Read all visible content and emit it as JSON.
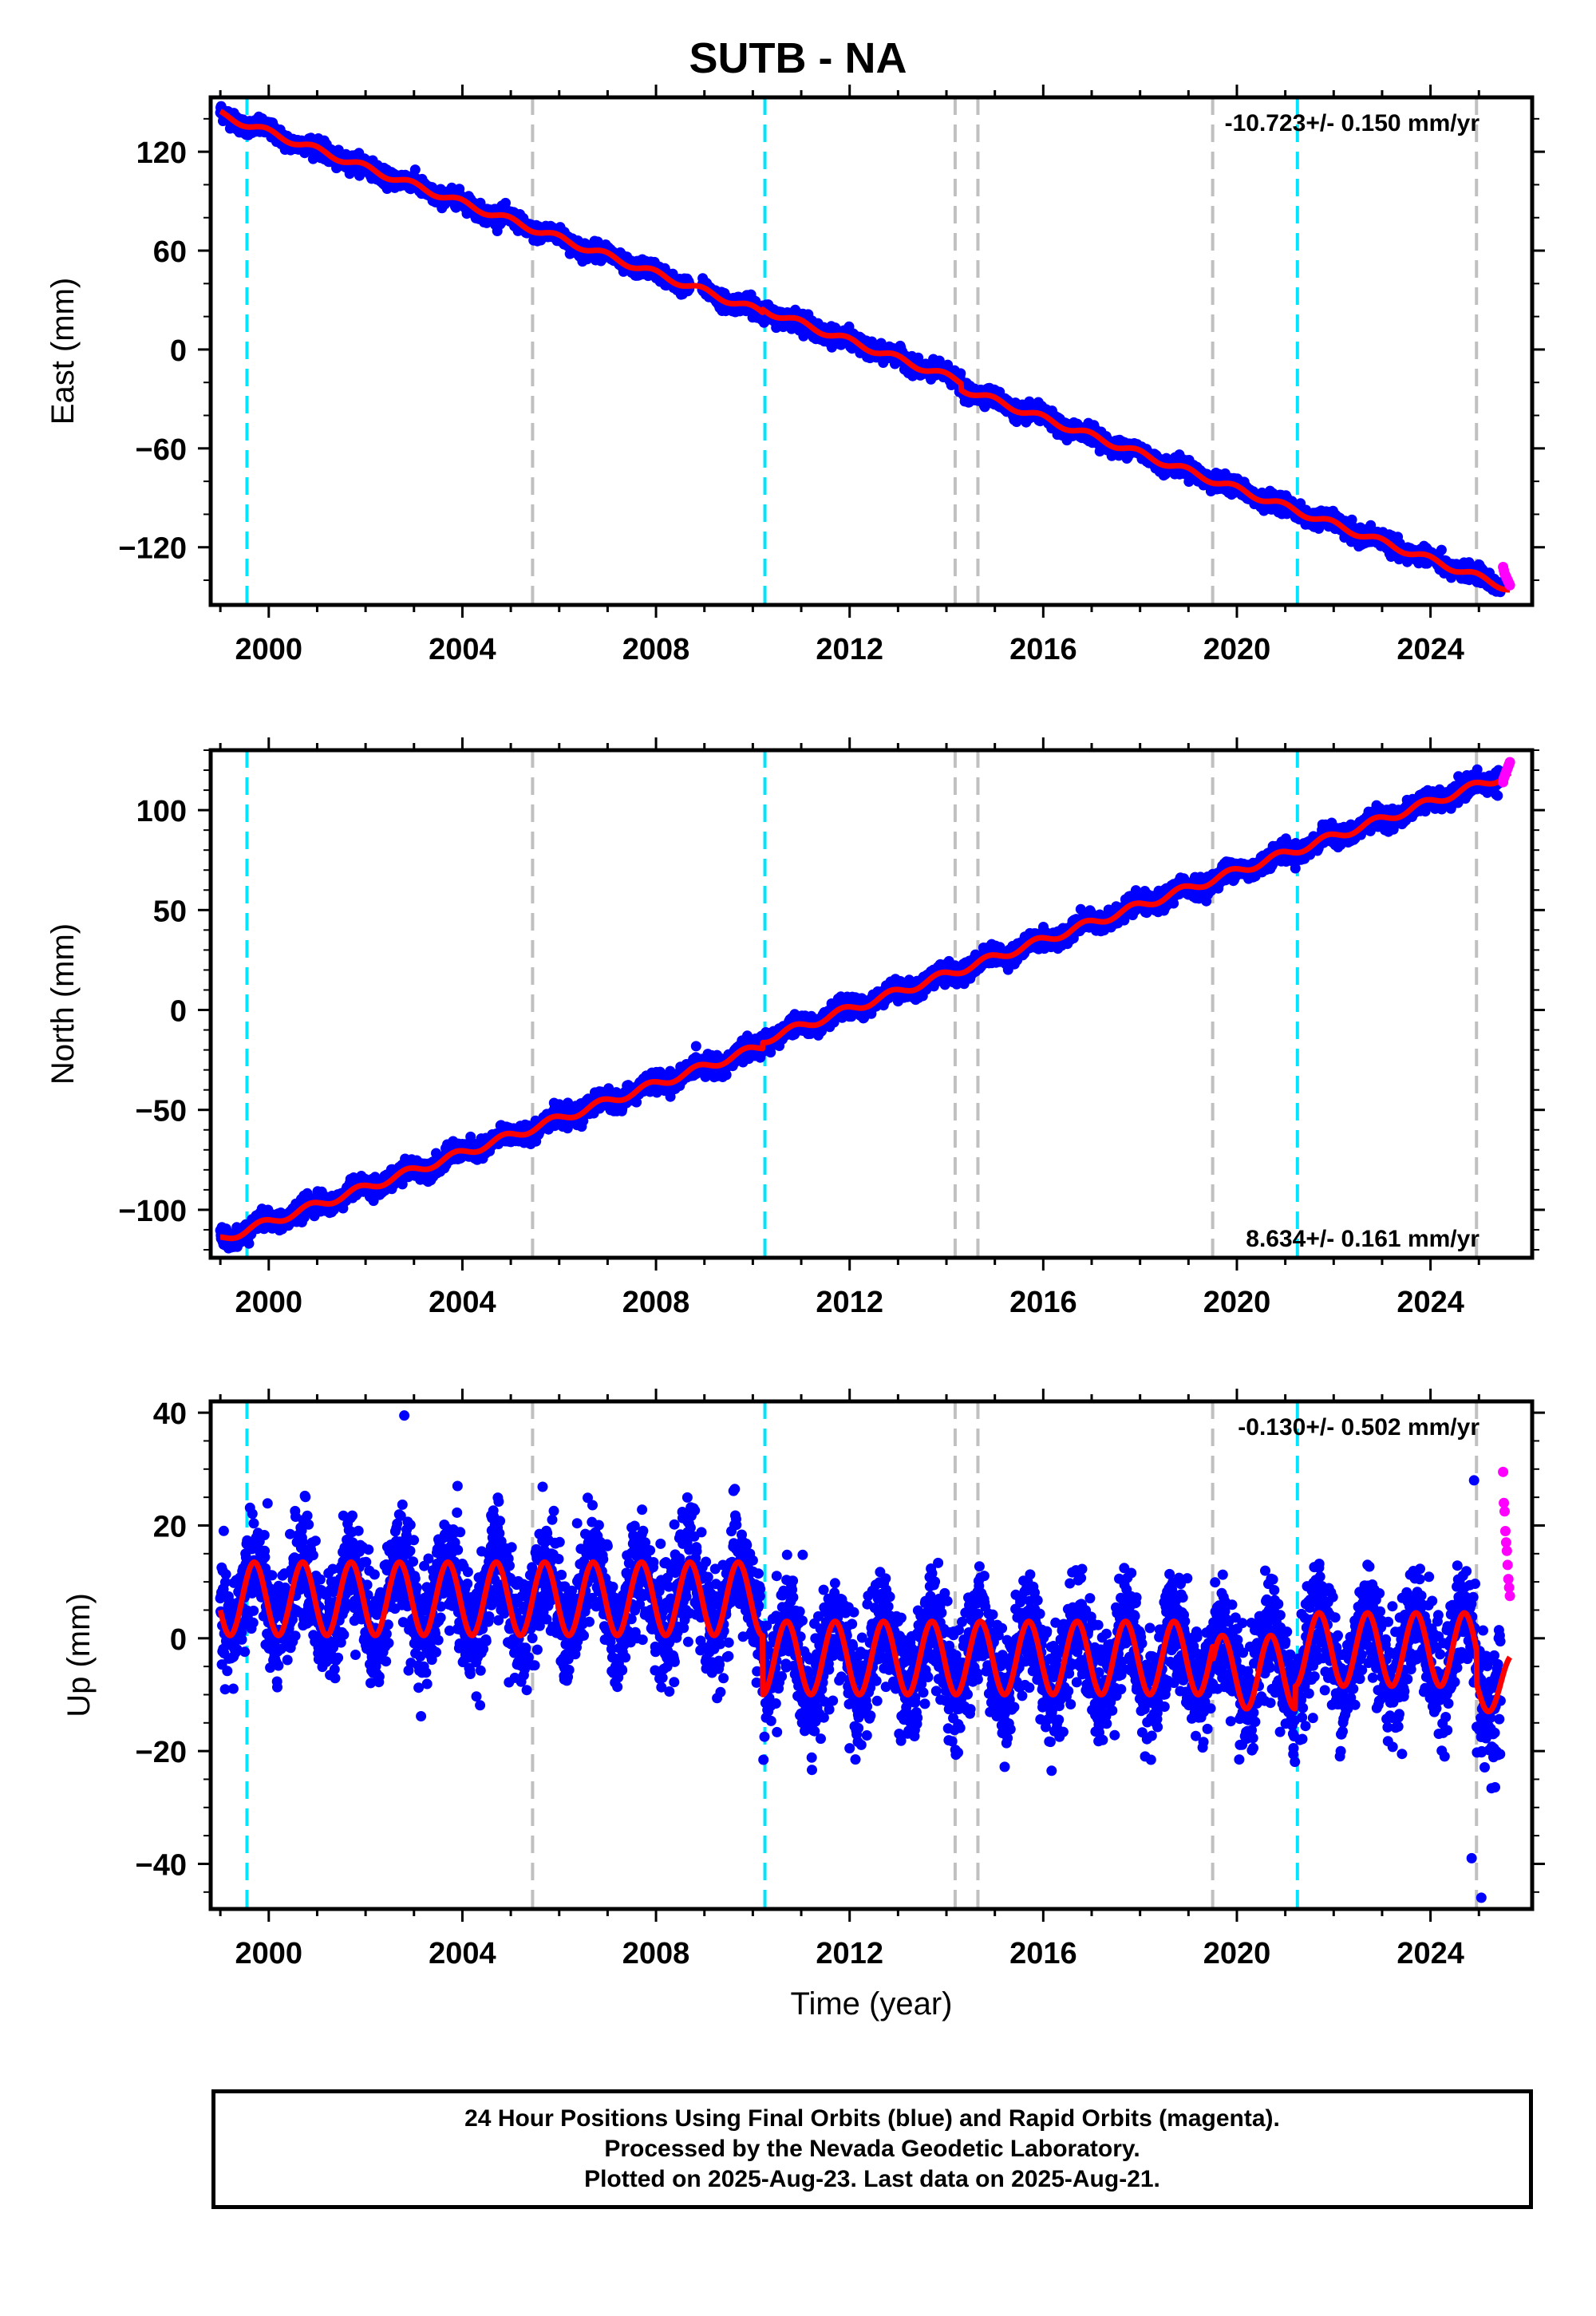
{
  "page": {
    "title": "SUTB - NA"
  },
  "chart_data": [
    {
      "type": "scatter",
      "component": "east",
      "ylabel": "East (mm)",
      "xlabel": "",
      "rate_label": "-10.723+/- 0.150 mm/yr",
      "rate_position": "top-right",
      "xlim": [
        1998.8,
        2026.1
      ],
      "ylim": [
        -155,
        153
      ],
      "x_ticks": [
        2000,
        2004,
        2008,
        2012,
        2016,
        2020,
        2024
      ],
      "y_ticks": [
        120,
        60,
        0,
        -60,
        -120
      ],
      "y_tick_labels": [
        "120",
        "60",
        "0",
        "−60",
        "−120"
      ],
      "grid": false,
      "trend": {
        "t0": 2012.3,
        "value_at_t0": 0,
        "rate_mm_per_yr": -10.723
      },
      "seasonal": {
        "annual_amplitude": 2.0,
        "phase": 0.3,
        "scatter": 2.4
      },
      "offsets": [
        {
          "at": 2010.2,
          "size": 2
        },
        {
          "at": 2014.3,
          "size": -4
        }
      ],
      "final_orbits": {
        "start": 1999.0,
        "end": 2025.45,
        "color": "#0000ff"
      },
      "rapid_orbits": {
        "start": 2025.5,
        "end": 2025.64,
        "values": [
          -132,
          -134,
          -136,
          -137,
          -138,
          -139,
          -140,
          -141,
          -142,
          -143
        ],
        "color": "#ff00ff"
      },
      "model_color": "#ff0000"
    },
    {
      "type": "scatter",
      "component": "north",
      "ylabel": "North (mm)",
      "xlabel": "",
      "rate_label": "8.634+/- 0.161 mm/yr",
      "rate_position": "bottom-right",
      "xlim": [
        1998.8,
        2026.1
      ],
      "ylim": [
        -124,
        130
      ],
      "x_ticks": [
        2000,
        2004,
        2008,
        2012,
        2016,
        2020,
        2024
      ],
      "y_ticks": [
        100,
        50,
        0,
        -50,
        -100
      ],
      "y_tick_labels": [
        "100",
        "50",
        "0",
        "−50",
        "−100"
      ],
      "grid": false,
      "trend": {
        "t0": 2012.3,
        "value_at_t0": 0,
        "rate_mm_per_yr": 8.634
      },
      "seasonal": {
        "annual_amplitude": 2.0,
        "phase": 1.4,
        "scatter": 2.3
      },
      "offsets": [
        {
          "at": 2010.2,
          "size": 3
        }
      ],
      "final_orbits": {
        "start": 1999.0,
        "end": 2025.45,
        "color": "#0000ff"
      },
      "rapid_orbits": {
        "start": 2025.5,
        "end": 2025.64,
        "values": [
          114,
          116,
          117,
          118,
          119,
          120,
          121,
          122,
          123,
          124
        ],
        "color": "#ff00ff"
      },
      "model_color": "#ff0000"
    },
    {
      "type": "scatter",
      "component": "up",
      "ylabel": "Up (mm)",
      "xlabel": "Time (year)",
      "rate_label": "-0.130+/- 0.502 mm/yr",
      "rate_position": "top-right",
      "xlim": [
        1998.8,
        2026.1
      ],
      "ylim": [
        -48,
        42
      ],
      "x_ticks": [
        2000,
        2004,
        2008,
        2012,
        2016,
        2020,
        2024
      ],
      "y_ticks": [
        40,
        20,
        0,
        -20,
        -40
      ],
      "y_tick_labels": [
        "40",
        "20",
        "0",
        "−20",
        "−40"
      ],
      "grid": false,
      "segments": [
        {
          "start": 1999.0,
          "end": 2010.2,
          "mean": 7,
          "amp": 6.5
        },
        {
          "start": 2010.2,
          "end": 2019.5,
          "mean": -3.5,
          "amp": 6.5
        },
        {
          "start": 2019.5,
          "end": 2021.2,
          "mean": -6,
          "amp": 6.5
        },
        {
          "start": 2021.2,
          "end": 2024.95,
          "mean": -2,
          "amp": 6.5
        },
        {
          "start": 2024.95,
          "end": 2025.64,
          "mean": -8,
          "amp": 5
        }
      ],
      "seasonal": {
        "annual_amplitude": 6.5,
        "phase": 0.55,
        "scatter": 5.0
      },
      "outliers": [
        [
          2002.8,
          39.5
        ],
        [
          2003.9,
          27
        ],
        [
          2024.9,
          28
        ],
        [
          2024.85,
          -39
        ],
        [
          2025.05,
          -46
        ]
      ],
      "final_orbits": {
        "start": 1999.0,
        "end": 2025.45,
        "color": "#0000ff"
      },
      "rapid_orbits": {
        "start": 2025.5,
        "end": 2025.64,
        "values": [
          29.5,
          24,
          22.5,
          19,
          17,
          15.5,
          13,
          10.5,
          9,
          7.5
        ],
        "color": "#ff00ff"
      },
      "model_color": "#ff0000"
    }
  ],
  "event_lines": {
    "cyan": {
      "color": "#00e5ff",
      "years": [
        1999.55,
        2010.25,
        2021.25
      ]
    },
    "gray": {
      "color": "#c0c0c0",
      "years": [
        2005.45,
        2014.18,
        2014.65,
        2019.5,
        2024.95
      ]
    }
  },
  "footer": {
    "line1": "24 Hour Positions Using Final Orbits (blue) and Rapid Orbits (magenta).",
    "line2": "Processed by the Nevada Geodetic Laboratory.",
    "line3": "Plotted on 2025-Aug-23. Last data on 2025-Aug-21."
  }
}
